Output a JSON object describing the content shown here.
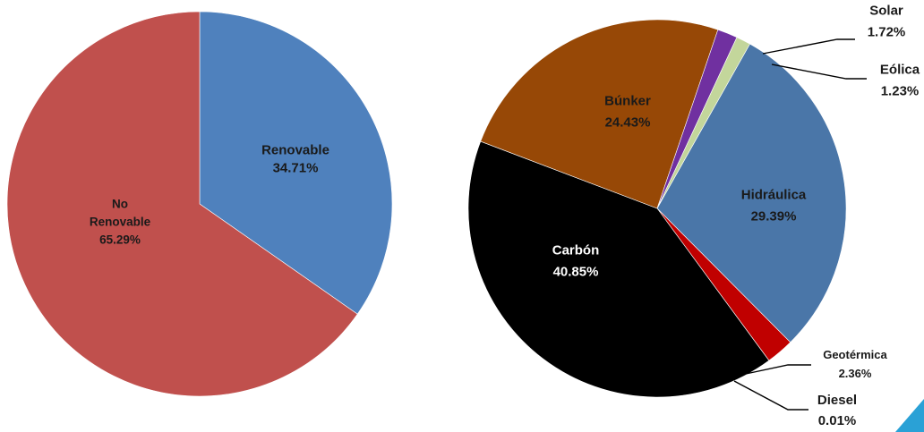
{
  "chart_data": [
    {
      "type": "pie",
      "title": "",
      "start_angle_deg": 0,
      "direction": "clockwise",
      "slices": [
        {
          "label_lines": [
            "Renovable"
          ],
          "value": 34.71,
          "value_text": "34.71%",
          "color": "#4F81BD"
        },
        {
          "label_lines": [
            "No",
            "Renovable"
          ],
          "value": 65.29,
          "value_text": "65.29%",
          "color": "#C0504D"
        }
      ]
    },
    {
      "type": "pie",
      "title": "",
      "start_angle_deg": 29.38,
      "direction": "clockwise",
      "slices": [
        {
          "label_lines": [
            "Hidráulica"
          ],
          "value": 29.39,
          "value_text": "29.39%",
          "color": "#4A76A8"
        },
        {
          "label_lines": [
            "Geotérmica"
          ],
          "value": 2.36,
          "value_text": "2.36%",
          "color": "#C00000"
        },
        {
          "label_lines": [
            "Diesel"
          ],
          "value": 0.01,
          "value_text": "0.01%",
          "color": "#7F7F7F"
        },
        {
          "label_lines": [
            "Carbón"
          ],
          "value": 40.85,
          "value_text": "40.85%",
          "color": "#000000"
        },
        {
          "label_lines": [
            "Búnker"
          ],
          "value": 24.43,
          "value_text": "24.43%",
          "color": "#974806"
        },
        {
          "label_lines": [
            "Solar"
          ],
          "value": 1.72,
          "value_text": "1.72%",
          "color": "#7030A0"
        },
        {
          "label_lines": [
            "Eólica"
          ],
          "value": 1.23,
          "value_text": "1.23%",
          "color": "#C3D69B"
        }
      ]
    }
  ],
  "decoration": {
    "corner_triangle_color": "#2AA1D6"
  }
}
